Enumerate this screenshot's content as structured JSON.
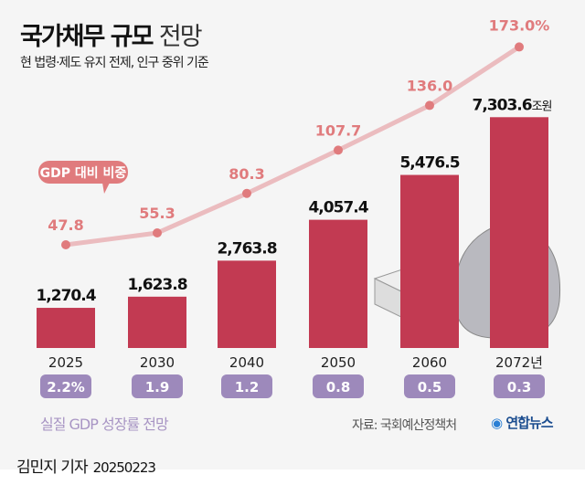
{
  "header": {
    "title_bold": "국가채무 규모",
    "title_light": "전망",
    "subtitle": "현 법령·제도 유지 전제, 인구 중위 기준"
  },
  "chart_data": {
    "type": "bar",
    "title": "국가채무 규모 전망",
    "categories": [
      "2025",
      "2030",
      "2040",
      "2050",
      "2060",
      "2072년"
    ],
    "series": [
      {
        "name": "국가채무",
        "unit": "조원",
        "values": [
          1270.4,
          1623.8,
          2763.8,
          4057.4,
          5476.5,
          7303.6
        ],
        "labels": [
          "1,270.4",
          "1,623.8",
          "2,763.8",
          "4,057.4",
          "5,476.5",
          "7,303.6"
        ],
        "last_suffix": "조원",
        "color": "#c23a52"
      },
      {
        "name": "GDP 대비 비중",
        "type": "line",
        "unit": "%",
        "values": [
          47.8,
          55.3,
          80.3,
          107.7,
          136.0,
          173.0
        ],
        "labels": [
          "47.8",
          "55.3",
          "80.3",
          "107.7",
          "136.0",
          "173.0%"
        ],
        "color": "#e07b7d"
      }
    ],
    "growth": {
      "name": "실질 GDP 성장률 전망",
      "labels": [
        "2.2%",
        "1.9",
        "1.2",
        "0.8",
        "0.5",
        "0.3"
      ],
      "values": [
        2.2,
        1.9,
        1.2,
        0.8,
        0.5,
        0.3
      ],
      "color": "#9d89bb"
    }
  },
  "footer": {
    "source": "자료: 국회예산정책처",
    "logo": "연합뉴스",
    "reporter": "김민지 기자",
    "date": "20250223"
  }
}
